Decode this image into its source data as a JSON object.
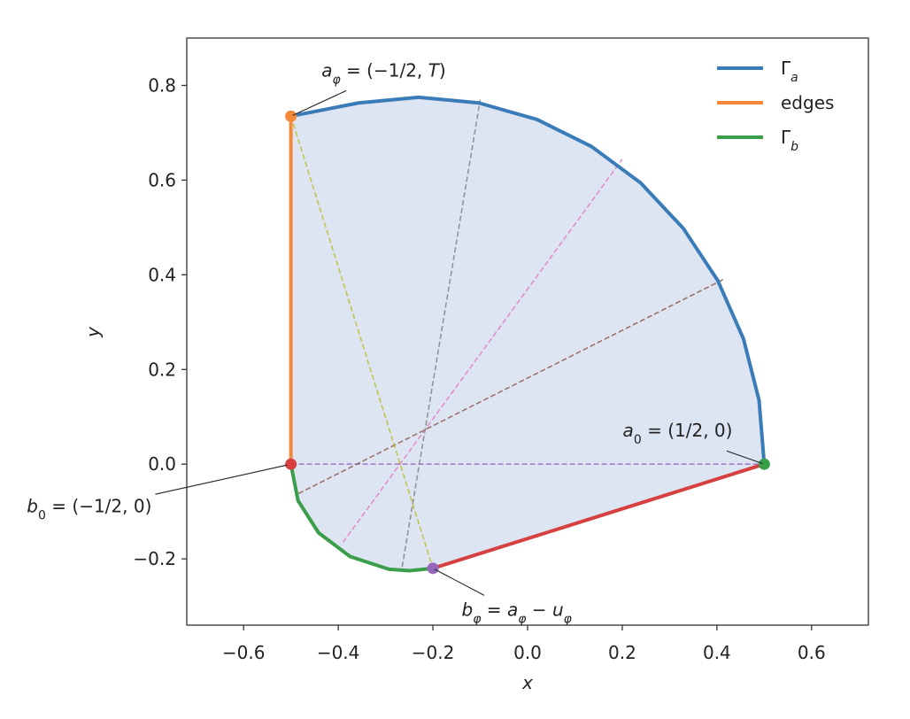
{
  "chart_data": {
    "type": "line",
    "xlabel": "x",
    "ylabel": "y",
    "xlim": [
      -0.72,
      0.72
    ],
    "ylim": [
      -0.34,
      0.9
    ],
    "xticks": [
      {
        "value": -0.6,
        "label": "−0.6"
      },
      {
        "value": -0.4,
        "label": "−0.4"
      },
      {
        "value": -0.2,
        "label": "−0.2"
      },
      {
        "value": 0,
        "label": "0.0"
      },
      0.2,
      0.4,
      0.6
    ],
    "yticks": [
      {
        "value": -0.2,
        "label": "−0.2"
      },
      {
        "value": 0,
        "label": "0.0"
      },
      0.2,
      0.4,
      0.6,
      0.8
    ],
    "legend": "upper right",
    "fill_color": "#dde5f3",
    "series": [
      {
        "name": "Γ",
        "name_subscript": "a",
        "color": "#3a7cb8",
        "x": [
          0.5,
          0.489,
          0.456,
          0.402,
          0.329,
          0.239,
          0.135,
          0.02,
          -0.103,
          -0.23,
          -0.357,
          -0.5
        ],
        "y": [
          0,
          0.135,
          0.265,
          0.3875,
          0.498,
          0.594,
          0.671,
          0.728,
          0.763,
          0.775,
          0.763,
          0.735
        ]
      },
      {
        "name": "edges",
        "color": "#f5893a",
        "x": [
          -0.5,
          -0.5
        ],
        "y": [
          0,
          0.735
        ]
      },
      {
        "name": "Γ",
        "name_subscript": "b",
        "color": "#3a9e4a",
        "x": [
          -0.5,
          -0.485,
          -0.4415,
          -0.375,
          -0.293,
          -0.25,
          -0.2
        ],
        "y": [
          0,
          -0.077,
          -0.145,
          -0.195,
          -0.222,
          -0.225,
          -0.22
        ]
      },
      {
        "color": "#d64040",
        "x": [
          -0.2,
          0.5
        ],
        "y": [
          -0.22,
          0
        ]
      }
    ],
    "dashed_lines": [
      {
        "color": "#9467bd",
        "x": [
          -0.5,
          0.5
        ],
        "y": [
          0,
          0
        ]
      },
      {
        "color": "#8c564b",
        "x": [
          -0.484,
          0.413
        ],
        "y": [
          -0.062,
          0.39
        ]
      },
      {
        "color": "#e377c2",
        "x": [
          -0.39,
          0.2
        ],
        "y": [
          -0.165,
          0.644
        ]
      },
      {
        "color": "#7f7f7f",
        "x": [
          -0.265,
          -0.1
        ],
        "y": [
          -0.217,
          0.77
        ]
      },
      {
        "color": "#bcbd22",
        "x": [
          -0.5,
          -0.2
        ],
        "y": [
          0.735,
          -0.22
        ]
      }
    ],
    "points": [
      {
        "color": "#f5893a",
        "x": -0.5,
        "y": 0.735
      },
      {
        "color": "#d64040",
        "x": -0.5,
        "y": 0
      },
      {
        "color": "#3a9e4a",
        "x": 0.5,
        "y": 0
      },
      {
        "color": "#9467bd",
        "x": -0.2,
        "y": -0.22
      }
    ],
    "annotations": [
      {
        "xy": [
          -0.5,
          0.735
        ],
        "xytext": [
          -0.304,
          0.832
        ],
        "text": [
          {
            "text": "a",
            "style": "italic"
          },
          {
            "text": "φ",
            "style": "sub-italic"
          },
          {
            "text": " = (−1/2, ",
            "style": "normal"
          },
          {
            "text": "T",
            "style": "italic"
          },
          {
            "text": ")",
            "style": "normal"
          }
        ]
      },
      {
        "xy": [
          0.5,
          0
        ],
        "xytext": [
          0.317,
          0.071
        ],
        "text": [
          {
            "text": "a",
            "style": "italic"
          },
          {
            "text": "0",
            "style": "sub"
          },
          {
            "text": " = (1/2, 0)",
            "style": "normal"
          }
        ]
      },
      {
        "xy": [
          -0.5,
          0
        ],
        "xytext": [
          -0.926,
          -0.088
        ],
        "text": [
          {
            "text": "b",
            "style": "italic"
          },
          {
            "text": "0",
            "style": "sub"
          },
          {
            "text": " = (−1/2, 0)",
            "style": "normal"
          }
        ]
      },
      {
        "xy": [
          -0.2,
          -0.22
        ],
        "xytext": [
          -0.023,
          -0.307
        ],
        "text": [
          {
            "text": "b",
            "style": "italic"
          },
          {
            "text": "φ",
            "style": "sub-italic"
          },
          {
            "text": " = ",
            "style": "normal"
          },
          {
            "text": "a",
            "style": "italic"
          },
          {
            "text": "φ",
            "style": "sub-italic"
          },
          {
            "text": " − ",
            "style": "normal"
          },
          {
            "text": "u",
            "style": "italic"
          },
          {
            "text": "φ",
            "style": "sub-italic"
          }
        ]
      }
    ]
  }
}
